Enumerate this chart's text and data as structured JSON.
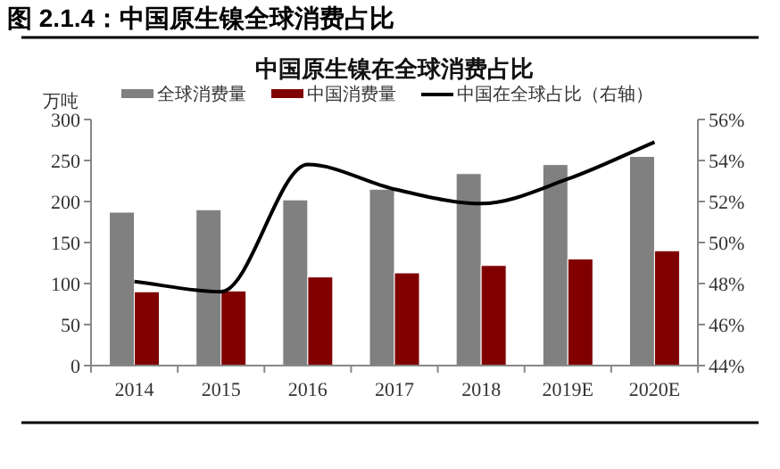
{
  "chart_data": {
    "type": "bar",
    "title": "图 2.1.4：中国原生镍全球消费占比",
    "subtitle": "中国原生镍在全球消费占比",
    "ylabel": "万吨",
    "categories": [
      "2014",
      "2015",
      "2016",
      "2017",
      "2018",
      "2019E",
      "2020E"
    ],
    "series": [
      {
        "name": "全球消费量",
        "color": "#808080",
        "values": [
          187,
          190,
          202,
          215,
          234,
          245,
          255
        ]
      },
      {
        "name": "中国消费量",
        "color": "#800000",
        "values": [
          90,
          91,
          108,
          113,
          122,
          130,
          140
        ]
      },
      {
        "name": "中国在全球占比（右轴）",
        "type": "line",
        "axis": "y2",
        "color": "#000000",
        "values": [
          48.1,
          47.6,
          53.8,
          52.6,
          51.9,
          53.1,
          54.9
        ]
      }
    ],
    "ylim": [
      0,
      300
    ],
    "yticks": [
      0,
      50,
      100,
      150,
      200,
      250,
      300
    ],
    "y2lim": [
      44,
      56
    ],
    "y2ticks": [
      {
        "value": 44,
        "label": "44%"
      },
      {
        "value": 46,
        "label": "46%"
      },
      {
        "value": 48,
        "label": "48%"
      },
      {
        "value": 50,
        "label": "50%"
      },
      {
        "value": 52,
        "label": "52%"
      },
      {
        "value": 54,
        "label": "54%"
      },
      {
        "value": 56,
        "label": "56%"
      }
    ],
    "legend": "top",
    "grid": false,
    "marker": "none",
    "line_style": "solid"
  }
}
